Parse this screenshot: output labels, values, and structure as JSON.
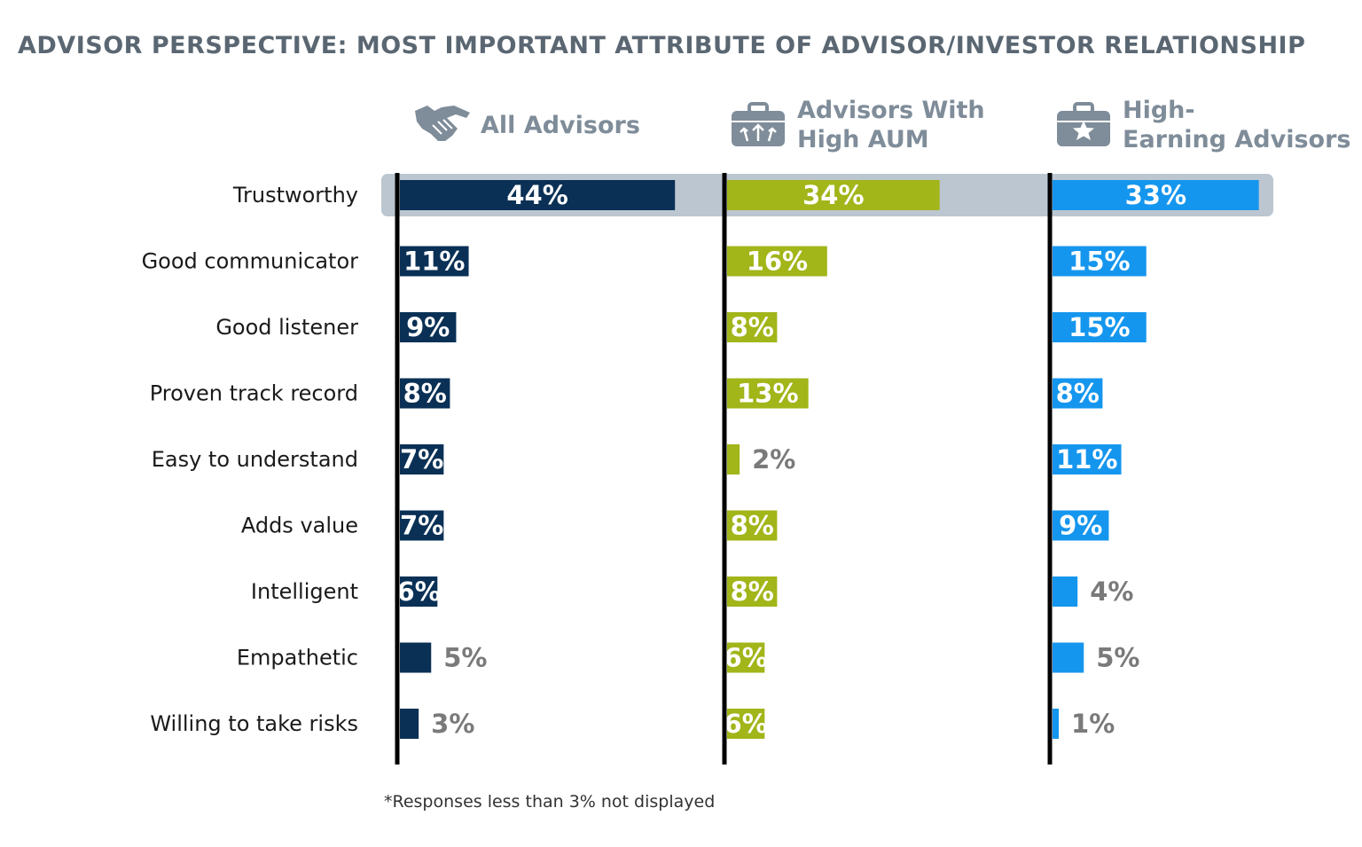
{
  "title": "ADVISOR PERSPECTIVE: MOST IMPORTANT ATTRIBUTE OF ADVISOR/INVESTOR RELATIONSHIP",
  "footnote": "*Responses less than 3% not displayed",
  "colors": {
    "all_advisors": "#0a3055",
    "high_aum": "#a2b519",
    "high_earning": "#1596ee",
    "header_text": "#7f8c99",
    "outside_label": "#7a7a7a",
    "highlight_band": "#bcc6d0"
  },
  "chart_data": {
    "type": "bar",
    "orientation": "horizontal",
    "title": "ADVISOR PERSPECTIVE: MOST IMPORTANT ATTRIBUTE OF ADVISOR/INVESTOR RELATIONSHIP",
    "categories": [
      "Trustworthy",
      "Good communicator",
      "Good listener",
      "Proven track record",
      "Easy to understand",
      "Adds value",
      "Intelligent",
      "Empathetic",
      "Willing to take risks"
    ],
    "highlighted_category": "Trustworthy",
    "value_unit": "%",
    "series": [
      {
        "name": "All Advisors",
        "header_lines": [
          "All Advisors"
        ],
        "icon": "handshake-icon",
        "color": "#0a3055",
        "values": [
          44,
          11,
          9,
          8,
          7,
          7,
          6,
          5,
          3
        ]
      },
      {
        "name": "Advisors With High AUM",
        "header_lines": [
          "Advisors With",
          "High AUM"
        ],
        "icon": "briefcase-arrows-icon",
        "color": "#a2b519",
        "values": [
          34,
          16,
          8,
          13,
          2,
          8,
          8,
          6,
          6
        ]
      },
      {
        "name": "High-Earning Advisors",
        "header_lines": [
          "High-",
          "Earning Advisors"
        ],
        "icon": "briefcase-star-icon",
        "color": "#1596ee",
        "values": [
          33,
          15,
          15,
          8,
          11,
          9,
          4,
          5,
          1
        ]
      }
    ]
  }
}
